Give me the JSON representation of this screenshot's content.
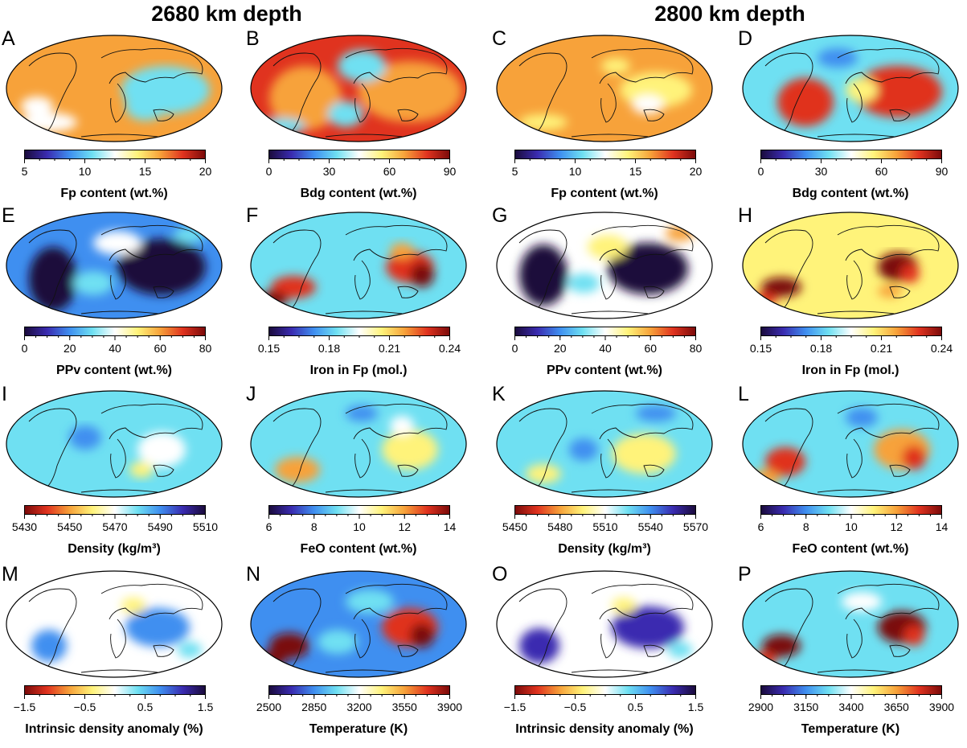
{
  "headings": {
    "left": "2680 km depth",
    "right": "2800 km depth"
  },
  "panels": [
    {
      "letter": "A",
      "title": "Fp content (wt.%)",
      "scale": "rainbow",
      "ticks": [
        "5",
        "10",
        "15",
        "20"
      ],
      "minor": 12,
      "pattern": "fp"
    },
    {
      "letter": "B",
      "title": "Bdg content (wt.%)",
      "scale": "rainbow",
      "ticks": [
        "0",
        "30",
        "60",
        "90"
      ],
      "minor": 12,
      "pattern": "bdg"
    },
    {
      "letter": "C",
      "title": "Fp content (wt.%)",
      "scale": "rainbow",
      "ticks": [
        "5",
        "10",
        "15",
        "20"
      ],
      "minor": 12,
      "pattern": "fp2"
    },
    {
      "letter": "D",
      "title": "Bdg content (wt.%)",
      "scale": "rainbow",
      "ticks": [
        "0",
        "30",
        "60",
        "90"
      ],
      "minor": 12,
      "pattern": "bdg2"
    },
    {
      "letter": "E",
      "title": "PPv content (wt.%)",
      "scale": "rainbow",
      "ticks": [
        "0",
        "20",
        "40",
        "60",
        "80"
      ],
      "minor": 16,
      "pattern": "ppv"
    },
    {
      "letter": "F",
      "title": "Iron in Fp (mol.)",
      "scale": "rainbow",
      "ticks": [
        "0.15",
        "0.18",
        "0.21",
        "0.24"
      ],
      "minor": 12,
      "pattern": "iron"
    },
    {
      "letter": "G",
      "title": "PPv content (wt.%)",
      "scale": "rainbow",
      "ticks": [
        "0",
        "20",
        "40",
        "60",
        "80"
      ],
      "minor": 16,
      "pattern": "ppv2"
    },
    {
      "letter": "H",
      "title": "Iron in Fp (mol.)",
      "scale": "rainbow",
      "ticks": [
        "0.15",
        "0.18",
        "0.21",
        "0.24"
      ],
      "minor": 12,
      "pattern": "iron2"
    },
    {
      "letter": "I",
      "title": "Density (kg/m³)",
      "scale": "reverse",
      "ticks": [
        "5430",
        "5450",
        "5470",
        "5490",
        "5510"
      ],
      "minor": 16,
      "pattern": "dens"
    },
    {
      "letter": "J",
      "title": "FeO content (wt.%)",
      "scale": "rainbow",
      "ticks": [
        "6",
        "8",
        "10",
        "12",
        "14"
      ],
      "minor": 16,
      "pattern": "feo"
    },
    {
      "letter": "K",
      "title": "Density (kg/m³)",
      "scale": "reverse",
      "ticks": [
        "5450",
        "5480",
        "5510",
        "5540",
        "5570"
      ],
      "minor": 16,
      "pattern": "dens2"
    },
    {
      "letter": "L",
      "title": "FeO content (wt.%)",
      "scale": "rainbow",
      "ticks": [
        "6",
        "8",
        "10",
        "12",
        "14"
      ],
      "minor": 16,
      "pattern": "feo2"
    },
    {
      "letter": "M",
      "title": "Intrinsic density anomaly (%)",
      "scale": "reverse",
      "ticks": [
        "−1.5",
        "−0.5",
        "0.5",
        "1.5"
      ],
      "minor": 12,
      "pattern": "anom"
    },
    {
      "letter": "N",
      "title": "Temperature (K)",
      "scale": "rainbow",
      "ticks": [
        "2500",
        "2850",
        "3200",
        "3550",
        "3900"
      ],
      "minor": 16,
      "pattern": "temp"
    },
    {
      "letter": "O",
      "title": "Intrinsic density anomaly (%)",
      "scale": "reverse",
      "ticks": [
        "−1.5",
        "−0.5",
        "0.5",
        "1.5"
      ],
      "minor": 12,
      "pattern": "anom2"
    },
    {
      "letter": "P",
      "title": "Temperature (K)",
      "scale": "rainbow",
      "ticks": [
        "2900",
        "3150",
        "3400",
        "3650",
        "3900"
      ],
      "minor": 16,
      "pattern": "temp2"
    }
  ],
  "colors": {
    "rainbow": [
      "#1a0a3a",
      "#3a2bb0",
      "#3f8ff0",
      "#6fe0f2",
      "#ffffff",
      "#fff37a",
      "#f7a23a",
      "#e0331f",
      "#7a0a0a"
    ],
    "reverse": [
      "#7a0a0a",
      "#e0331f",
      "#f7a23a",
      "#fff37a",
      "#ffffff",
      "#6fe0f2",
      "#3f8ff0",
      "#3a2bb0",
      "#1a0a3a"
    ]
  },
  "chart_data": {
    "type": "heatmap",
    "panel_count": 16,
    "columns": [
      "2680 km depth",
      "2800 km depth"
    ]
  }
}
